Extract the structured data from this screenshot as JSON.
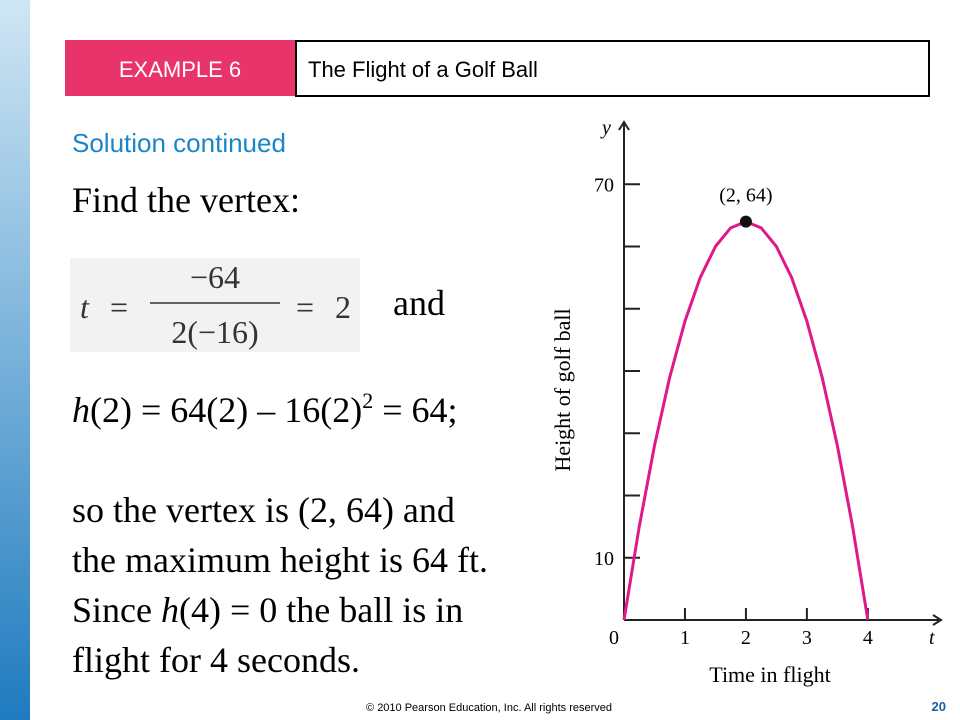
{
  "header": {
    "tag": "EXAMPLE 6",
    "title": "The Flight of a Golf Ball"
  },
  "subtitle": "Solution continued",
  "step": "Find the vertex:",
  "vertex_eq": {
    "t": "t",
    "eq": "=",
    "num": "−64",
    "den": "2(−16)",
    "result": "2",
    "and": "and"
  },
  "height_eq": {
    "h": "h",
    "a": "(2) = 64(2) – 16(2)",
    "sup": "2",
    "b": " = 64;"
  },
  "conclusion": {
    "line1": "so the vertex is (2, 64) and",
    "line2": "the maximum height is 64 ft.",
    "line3_pre": "Since ",
    "line3_h": "h",
    "line3_post": "(4) = 0 the ball is in",
    "line4": "flight for 4 seconds."
  },
  "chart_data": {
    "type": "line",
    "x_label": "Time in flight",
    "y_label": "Height of golf ball",
    "x_axis_letter": "t",
    "y_axis_letter": "y",
    "x": [
      0,
      0.25,
      0.5,
      0.75,
      1,
      1.25,
      1.5,
      1.75,
      2,
      2.25,
      2.5,
      2.75,
      3,
      3.25,
      3.5,
      3.75,
      4
    ],
    "values": [
      0,
      15,
      28,
      39,
      48,
      55,
      60,
      63,
      64,
      63,
      60,
      55,
      48,
      39,
      28,
      15,
      0
    ],
    "color": "#e0198a",
    "xlim": [
      0,
      5.2
    ],
    "ylim": [
      0,
      80
    ],
    "xticks": [
      0,
      1,
      2,
      3,
      4
    ],
    "yticks": [
      10,
      70
    ],
    "yminor": [
      20,
      30,
      40,
      50,
      60
    ],
    "point": {
      "x": 2,
      "y": 64,
      "label": "(2, 64)"
    }
  },
  "footer": {
    "copyright": "© 2010 Pearson Education, Inc.  All rights reserved",
    "page": "20"
  }
}
